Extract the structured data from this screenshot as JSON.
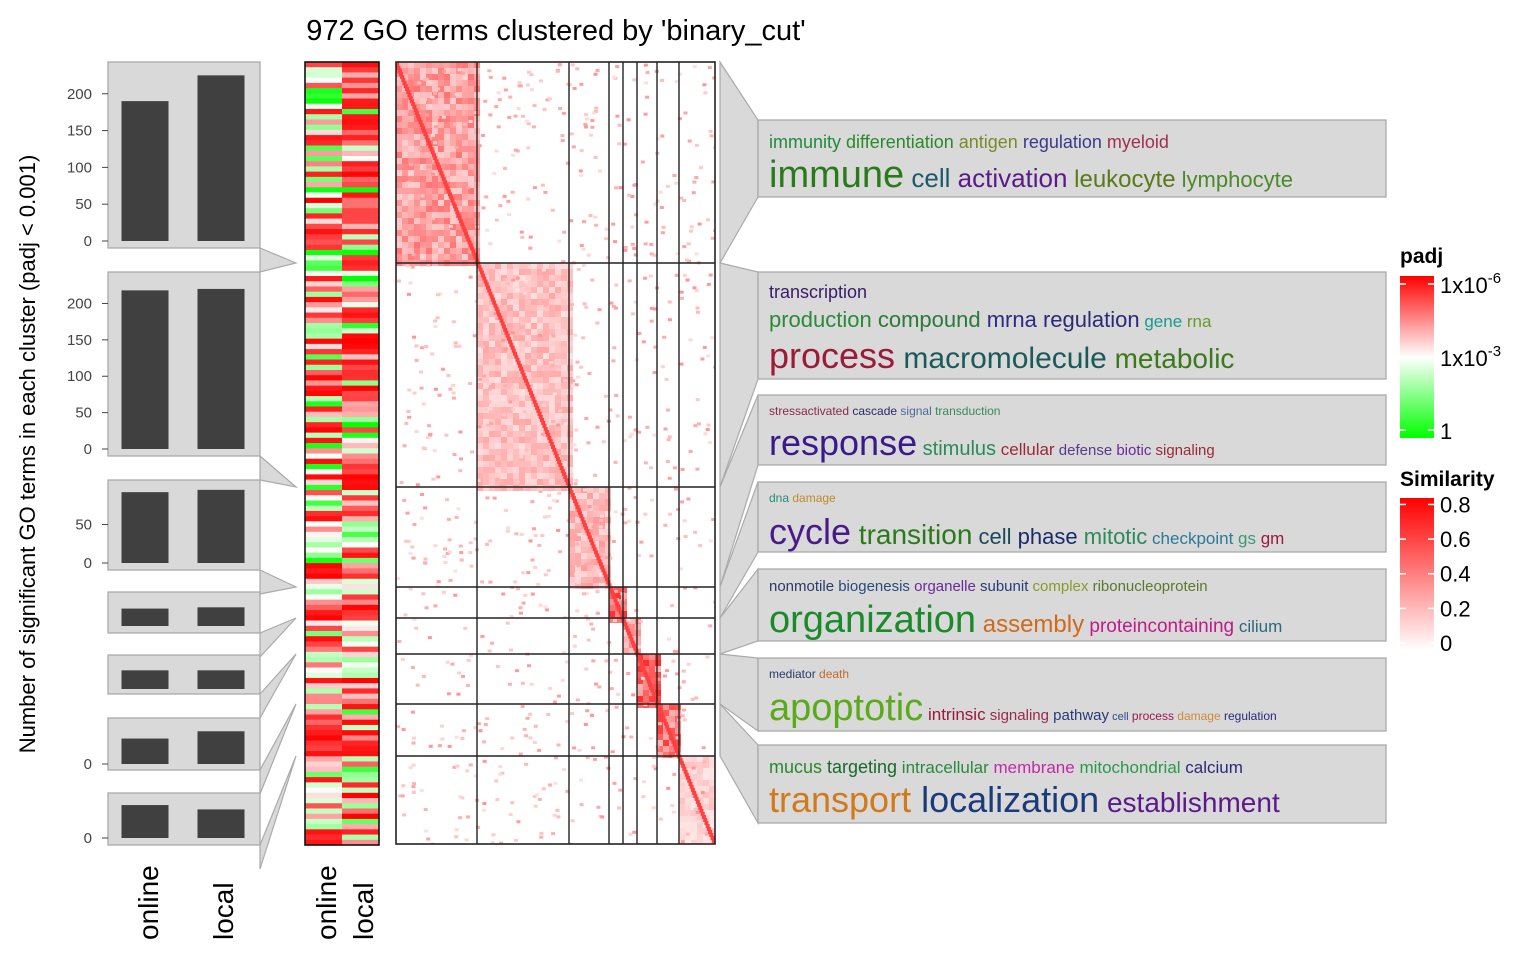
{
  "chart_data": {
    "type": "heatmap",
    "title": "972 GO terms clustered by 'binary_cut'",
    "ylabel": "Number of significant GO terms in each cluster (padj < 0.001)",
    "bar_columns": [
      "online",
      "local"
    ],
    "padj_columns": [
      "online",
      "local"
    ],
    "clusters": [
      {
        "online": 190,
        "local": 225,
        "axis_ticks": [
          "0",
          "50",
          "100",
          "150",
          "200"
        ],
        "axis_values": [
          0,
          50,
          100,
          150,
          200
        ],
        "axis_max": 235,
        "cloud": [
          [
            {
              "w": "immunity",
              "c": "#1e8c3c",
              "s": 18
            },
            {
              "w": "differentiation",
              "c": "#2a8a2a",
              "s": 18
            },
            {
              "w": "antigen",
              "c": "#7a8a2a",
              "s": 18
            },
            {
              "w": "regulation",
              "c": "#3a3a8a",
              "s": 18
            },
            {
              "w": "myeloid",
              "c": "#a03050",
              "s": 18
            }
          ],
          [
            {
              "w": "immune",
              "c": "#2a7a1a",
              "s": 38
            },
            {
              "w": "cell",
              "c": "#1a5a6a",
              "s": 26
            },
            {
              "w": "activation",
              "c": "#5a1a8a",
              "s": 26
            },
            {
              "w": "leukocyte",
              "c": "#5a7a1a",
              "s": 24
            },
            {
              "w": "lymphocyte",
              "c": "#4a8a2a",
              "s": 22
            }
          ]
        ]
      },
      {
        "online": 218,
        "local": 220,
        "axis_ticks": [
          "0",
          "50",
          "100",
          "150",
          "200"
        ],
        "axis_values": [
          0,
          50,
          100,
          150,
          200
        ],
        "axis_max": 235,
        "cloud": [
          [
            {
              "w": "transcription",
              "c": "#3a1a6a",
              "s": 18
            }
          ],
          [
            {
              "w": "production",
              "c": "#2a8a3a",
              "s": 22
            },
            {
              "w": "compound",
              "c": "#2a7a3a",
              "s": 22
            },
            {
              "w": "mrna",
              "c": "#2a2a8a",
              "s": 22
            },
            {
              "w": "regulation",
              "c": "#2a2a7a",
              "s": 22
            },
            {
              "w": "gene",
              "c": "#1a9a8a",
              "s": 17
            },
            {
              "w": "rna",
              "c": "#6a9a2a",
              "s": 17
            }
          ],
          [
            {
              "w": "process",
              "c": "#9a1a3a",
              "s": 36
            },
            {
              "w": "macromolecule",
              "c": "#1a5a5a",
              "s": 30
            },
            {
              "w": "metabolic",
              "c": "#3a7a1a",
              "s": 28
            }
          ]
        ]
      },
      {
        "online": 92,
        "local": 95,
        "axis_ticks": [
          "0",
          "50"
        ],
        "axis_values": [
          0,
          50
        ],
        "axis_max": 100,
        "cloud": [
          [
            {
              "w": "stressactivated",
              "c": "#8a2a4a",
              "s": 12
            },
            {
              "w": "cascade",
              "c": "#2a2a6a",
              "s": 12
            },
            {
              "w": "signal",
              "c": "#4a6a9a",
              "s": 12
            },
            {
              "w": "transduction",
              "c": "#3a8a5a",
              "s": 12
            }
          ],
          [
            {
              "w": "response",
              "c": "#3a1a8a",
              "s": 36
            },
            {
              "w": "stimulus",
              "c": "#2a8a5a",
              "s": 20
            },
            {
              "w": "cellular",
              "c": "#9a2a3a",
              "s": 17
            },
            {
              "w": "defense",
              "c": "#5a3a8a",
              "s": 15
            },
            {
              "w": "biotic",
              "c": "#6a2a9a",
              "s": 15
            },
            {
              "w": "signaling",
              "c": "#9a2a3a",
              "s": 15
            }
          ]
        ]
      },
      {
        "online": 28,
        "local": 30,
        "axis_ticks": [],
        "axis_values": [],
        "axis_max": 45,
        "cloud": [
          [
            {
              "w": "dna",
              "c": "#2a8a7a",
              "s": 12
            },
            {
              "w": "damage",
              "c": "#c08a2a",
              "s": 12
            }
          ],
          [
            {
              "w": "cycle",
              "c": "#4a1a8a",
              "s": 36
            },
            {
              "w": "transition",
              "c": "#2a7a1a",
              "s": 28
            },
            {
              "w": "cell",
              "c": "#1a4a5a",
              "s": 22
            },
            {
              "w": "phase",
              "c": "#1a2a6a",
              "s": 22
            },
            {
              "w": "mitotic",
              "c": "#2a8a5a",
              "s": 22
            },
            {
              "w": "checkpoint",
              "c": "#2a7a9a",
              "s": 17
            },
            {
              "w": "gs",
              "c": "#3a9a7a",
              "s": 17
            },
            {
              "w": "gm",
              "c": "#9a1a3a",
              "s": 17
            }
          ]
        ]
      },
      {
        "online": 30,
        "local": 30,
        "axis_ticks": [],
        "axis_values": [],
        "axis_max": 45,
        "cloud": [
          [
            {
              "w": "nonmotile",
              "c": "#2a3a6a",
              "s": 15
            },
            {
              "w": "biogenesis",
              "c": "#2a4a7a",
              "s": 15
            },
            {
              "w": "organelle",
              "c": "#6a2a9a",
              "s": 15
            },
            {
              "w": "subunit",
              "c": "#2a3a7a",
              "s": 15
            },
            {
              "w": "complex",
              "c": "#8a9a2a",
              "s": 15
            },
            {
              "w": "ribonucleoprotein",
              "c": "#5a7a2a",
              "s": 15
            }
          ],
          [
            {
              "w": "organization",
              "c": "#1a8a2a",
              "s": 38
            },
            {
              "w": "assembly",
              "c": "#d06a1a",
              "s": 24
            },
            {
              "w": "proteincontaining",
              "c": "#c01a8a",
              "s": 19
            },
            {
              "w": "cilium",
              "c": "#2a6a7a",
              "s": 17
            }
          ]
        ]
      },
      {
        "online": 35,
        "local": 45,
        "axis_ticks": [
          "0"
        ],
        "axis_values": [
          0
        ],
        "axis_max": 55,
        "cloud": [
          [
            {
              "w": "mediator",
              "c": "#2a3a6a",
              "s": 12
            },
            {
              "w": "death",
              "c": "#c06a2a",
              "s": 12
            }
          ],
          [
            {
              "w": "apoptotic",
              "c": "#5aaa1a",
              "s": 38
            },
            {
              "w": "intrinsic",
              "c": "#9a1a3a",
              "s": 17
            },
            {
              "w": "signaling",
              "c": "#9a2a4a",
              "s": 15
            },
            {
              "w": "pathway",
              "c": "#2a3a7a",
              "s": 15
            },
            {
              "w": "cell",
              "c": "#2a4a8a",
              "s": 11
            },
            {
              "w": "process",
              "c": "#9a1a4a",
              "s": 12
            },
            {
              "w": "damage",
              "c": "#d08a3a",
              "s": 12
            },
            {
              "w": "regulation",
              "c": "#2a2a7a",
              "s": 12
            }
          ]
        ]
      },
      {
        "online": 38,
        "local": 33,
        "axis_ticks": [
          "0"
        ],
        "axis_values": [
          0
        ],
        "axis_max": 45,
        "cloud": [
          [
            {
              "w": "mucus",
              "c": "#2a8a2a",
              "s": 18
            },
            {
              "w": "targeting",
              "c": "#1a6a2a",
              "s": 18
            },
            {
              "w": "intracellular",
              "c": "#2a8a3a",
              "s": 17
            },
            {
              "w": "membrane",
              "c": "#c02aaa",
              "s": 17
            },
            {
              "w": "mitochondrial",
              "c": "#2a9a4a",
              "s": 17
            },
            {
              "w": "calcium",
              "c": "#2a2a7a",
              "s": 17
            }
          ],
          [
            {
              "w": "transport",
              "c": "#d07a1a",
              "s": 36
            },
            {
              "w": "localization",
              "c": "#1a3a7a",
              "s": 36
            },
            {
              "w": "establishment",
              "c": "#5a1a8a",
              "s": 28
            }
          ]
        ]
      }
    ],
    "legends": {
      "padj": {
        "title": "padj",
        "labels": [
          "1x10",
          "1x10",
          "1"
        ],
        "exponents": [
          "-6",
          "-3",
          ""
        ],
        "colors": [
          "#ff0000",
          "#ffffff",
          "#00ff00"
        ]
      },
      "similarity": {
        "title": "Similarity",
        "labels": [
          "0.8",
          "0.6",
          "0.4",
          "0.2",
          "0"
        ],
        "values": [
          0.8,
          0.6,
          0.4,
          0.2,
          0
        ],
        "colors": [
          "#ff0000",
          "#ffffff"
        ]
      }
    }
  }
}
